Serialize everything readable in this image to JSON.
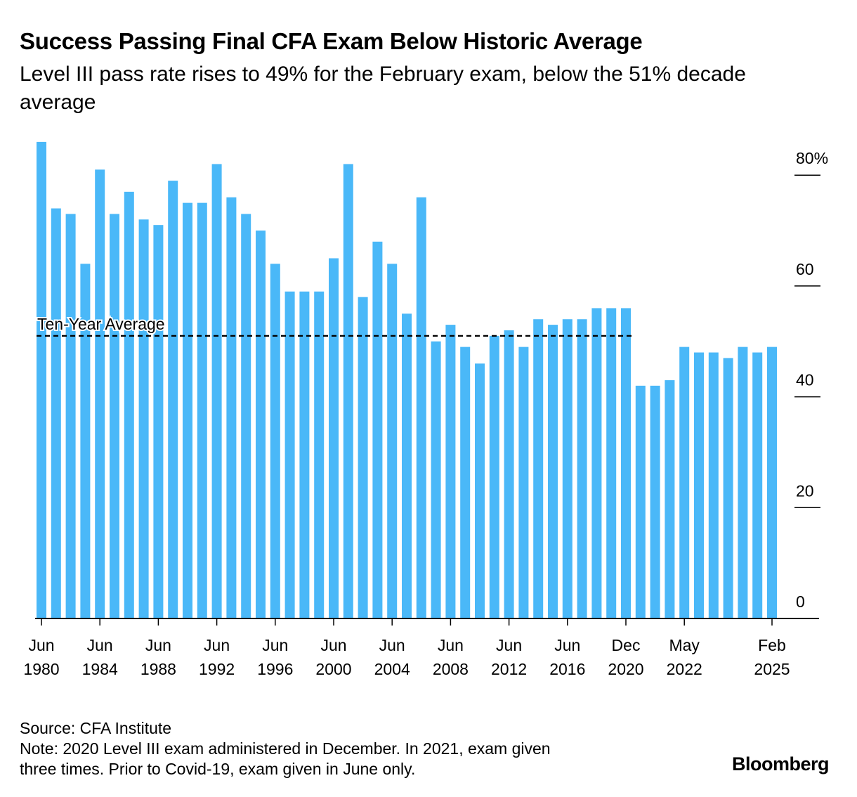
{
  "title": "Success Passing Final CFA Exam Below Historic Average",
  "subtitle": "Level III pass rate rises to 49% for the February exam, below the 51% decade average",
  "source": "Source: CFA Institute",
  "note_line1": "Note: 2020 Level III exam administered in December. In 2021, exam given",
  "note_line2": "three times. Prior to Covid-19, exam given in June only.",
  "brand": "Bloomberg",
  "colors": {
    "bar": "#4AB8F8",
    "axis": "#000000",
    "average_line": "#000000"
  },
  "chart_data": {
    "type": "bar",
    "title": "Success Passing Final CFA Exam Below Historic Average",
    "ylabel": "",
    "xlabel": "",
    "ylim": [
      0,
      85
    ],
    "y_ticks": [
      {
        "value": 0,
        "label": "0"
      },
      {
        "value": 20,
        "label": "20"
      },
      {
        "value": 40,
        "label": "40"
      },
      {
        "value": 60,
        "label": "60"
      },
      {
        "value": 80,
        "label": "80%"
      }
    ],
    "reference_line": {
      "label": "Ten-Year Average",
      "value": 51
    },
    "categories": [
      "Jun 1980",
      "Jun 1981",
      "Jun 1982",
      "Jun 1983",
      "Jun 1984",
      "Jun 1985",
      "Jun 1986",
      "Jun 1987",
      "Jun 1988",
      "Jun 1989",
      "Jun 1990",
      "Jun 1991",
      "Jun 1992",
      "Jun 1993",
      "Jun 1994",
      "Jun 1995",
      "Jun 1996",
      "Jun 1997",
      "Jun 1998",
      "Jun 1999",
      "Jun 2000",
      "Jun 2001",
      "Jun 2002",
      "Jun 2003",
      "Jun 2004",
      "Jun 2005",
      "Jun 2006",
      "Jun 2007",
      "Jun 2008",
      "Jun 2009",
      "Jun 2010",
      "Jun 2011",
      "Jun 2012",
      "Jun 2013",
      "Jun 2014",
      "Jun 2015",
      "Jun 2016",
      "Jun 2017",
      "Jun 2018",
      "Jun 2019",
      "Dec 2020",
      "Mar 2021",
      "Jul 2021",
      "Nov 2021",
      "May 2022",
      "Nov 2022",
      "May 2023",
      "Aug 2023",
      "Feb 2024",
      "Aug 2024",
      "Feb 2025"
    ],
    "values": [
      86,
      74,
      73,
      64,
      81,
      73,
      77,
      72,
      71,
      79,
      75,
      75,
      82,
      76,
      73,
      70,
      64,
      59,
      59,
      59,
      65,
      82,
      58,
      68,
      64,
      55,
      76,
      50,
      53,
      49,
      46,
      51,
      52,
      49,
      54,
      53,
      54,
      54,
      56,
      56,
      56,
      42,
      42,
      43,
      49,
      48,
      48,
      47,
      49,
      48,
      49
    ],
    "x_tick_labels": [
      {
        "index": 0,
        "line1": "Jun",
        "line2": "1980"
      },
      {
        "index": 4,
        "line1": "Jun",
        "line2": "1984"
      },
      {
        "index": 8,
        "line1": "Jun",
        "line2": "1988"
      },
      {
        "index": 12,
        "line1": "Jun",
        "line2": "1992"
      },
      {
        "index": 16,
        "line1": "Jun",
        "line2": "1996"
      },
      {
        "index": 20,
        "line1": "Jun",
        "line2": "2000"
      },
      {
        "index": 24,
        "line1": "Jun",
        "line2": "2004"
      },
      {
        "index": 28,
        "line1": "Jun",
        "line2": "2008"
      },
      {
        "index": 32,
        "line1": "Jun",
        "line2": "2012"
      },
      {
        "index": 36,
        "line1": "Jun",
        "line2": "2016"
      },
      {
        "index": 40,
        "line1": "Dec",
        "line2": "2020"
      },
      {
        "index": 44,
        "line1": "May",
        "line2": "2022"
      },
      {
        "index": 50,
        "line1": "Feb",
        "line2": "2025"
      }
    ]
  }
}
